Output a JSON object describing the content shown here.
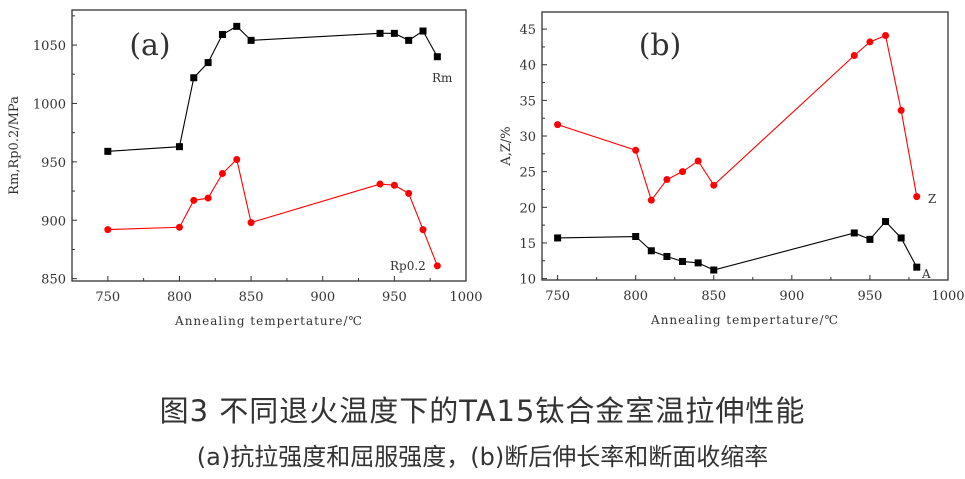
{
  "caption": {
    "line1": "图3  不同退火温度下的TA15钛合金室温拉伸性能",
    "line2": "(a)抗拉强度和屈服强度，(b)断后伸长率和断面收缩率"
  },
  "chart_data": [
    {
      "type": "line",
      "panel_label": "(a)",
      "xlabel": "Annealing tempertature/℃",
      "ylabel": "Rm,Rp0.2/MPa",
      "xlim": [
        725,
        1000
      ],
      "ylim": [
        848,
        1080
      ],
      "xticks": [
        750,
        800,
        850,
        900,
        950,
        1000
      ],
      "yticks": [
        850,
        900,
        950,
        1000,
        1050
      ],
      "grid": false,
      "x": [
        750,
        800,
        810,
        820,
        830,
        840,
        850,
        940,
        950,
        960,
        970,
        980
      ],
      "series": [
        {
          "name": "Rm",
          "color": "#000000",
          "marker": "square",
          "values": [
            959,
            963,
            1022,
            1035,
            1059,
            1066,
            1054,
            1060,
            1060,
            1054,
            1062,
            1040
          ]
        },
        {
          "name": "Rp0.2",
          "color": "#ff0000",
          "marker": "circle",
          "values": [
            892,
            894,
            917,
            919,
            940,
            952,
            898,
            931,
            930,
            923,
            892,
            861
          ]
        }
      ]
    },
    {
      "type": "line",
      "panel_label": "(b)",
      "xlabel": "Annealing tempertature/℃",
      "ylabel": "A,Z/%",
      "xlim": [
        740,
        1000
      ],
      "ylim": [
        9.8,
        47.4
      ],
      "xticks": [
        750,
        800,
        850,
        900,
        950,
        1000
      ],
      "yticks": [
        10,
        15,
        20,
        25,
        30,
        35,
        40,
        45
      ],
      "grid": false,
      "x": [
        750,
        800,
        810,
        820,
        830,
        840,
        850,
        940,
        950,
        960,
        970,
        980
      ],
      "series": [
        {
          "name": "Z",
          "color": "#ff0000",
          "marker": "circle",
          "values": [
            31.6,
            28.0,
            21.0,
            23.9,
            25.0,
            26.5,
            23.1,
            41.3,
            43.2,
            44.1,
            33.6,
            21.5
          ]
        },
        {
          "name": "A",
          "color": "#000000",
          "marker": "square",
          "values": [
            15.7,
            15.9,
            13.9,
            13.1,
            12.4,
            12.2,
            11.2,
            16.4,
            15.5,
            18.0,
            15.7,
            11.6
          ]
        }
      ]
    }
  ]
}
